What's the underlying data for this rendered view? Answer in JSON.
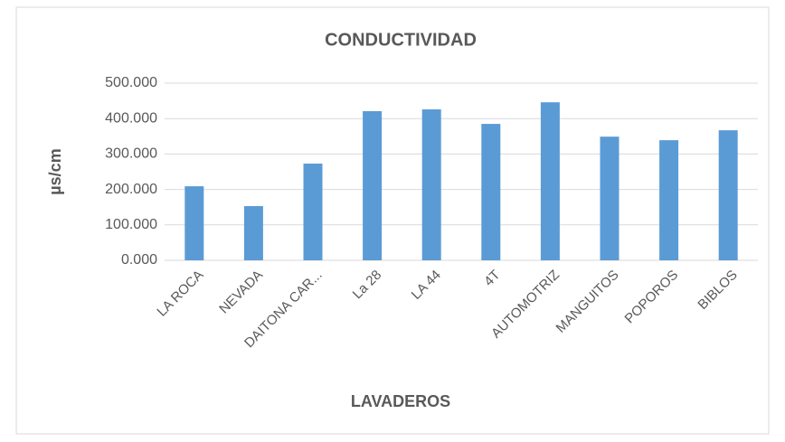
{
  "chart_data": {
    "type": "bar",
    "title": "CONDUCTIVIDAD",
    "x_label": "LAVADEROS",
    "y_label": "µs/cm",
    "categories": [
      "LA ROCA",
      "NEVADA",
      "DAITONA CAR...",
      "La 28",
      "LA 44",
      "4T",
      "AUTOMOTRIZ",
      "MANGUITOS",
      "POPOROS",
      "BIBLOS"
    ],
    "values": [
      209,
      153,
      273,
      421,
      426,
      385,
      446,
      349,
      339,
      367
    ],
    "color": "#5b9bd5",
    "ylim": [
      0,
      500
    ],
    "yticks": [
      {
        "value": 0,
        "label": "0.000"
      },
      {
        "value": 100,
        "label": "100.000"
      },
      {
        "value": 200,
        "label": "200.000"
      },
      {
        "value": 300,
        "label": "300.000"
      },
      {
        "value": 400,
        "label": "400.000"
      },
      {
        "value": 500,
        "label": "500.000"
      }
    ],
    "grid": true
  }
}
